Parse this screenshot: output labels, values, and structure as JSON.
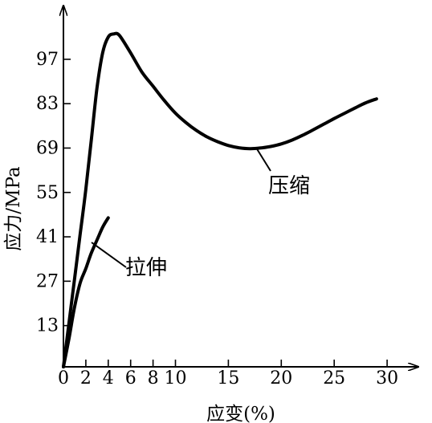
{
  "chart_data": {
    "type": "line",
    "title": "",
    "xlabel": "应变(%)",
    "ylabel": "应力/MPa",
    "x_ticks": [
      0,
      2,
      4,
      6,
      8,
      10,
      15,
      20,
      25,
      30
    ],
    "y_ticks": [
      13,
      27,
      41,
      55,
      69,
      83,
      97
    ],
    "xlim": [
      0,
      33
    ],
    "ylim": [
      0,
      112
    ],
    "grid": false,
    "legend": "none",
    "series": [
      {
        "name": "压缩",
        "x": [
          0,
          0.5,
          1,
          1.5,
          2,
          2.5,
          3,
          3.5,
          4,
          4.5,
          5,
          6,
          7,
          8,
          9,
          10,
          11,
          12,
          13,
          14,
          15,
          16,
          17,
          18,
          19,
          20,
          21,
          22,
          23,
          24,
          25,
          26,
          27,
          28,
          29
        ],
        "y": [
          0,
          14,
          28,
          42,
          56,
          72,
          88,
          99,
          104,
          105,
          104.5,
          99,
          93,
          88.5,
          84,
          80,
          77,
          74.5,
          72.5,
          71,
          69.8,
          69.1,
          68.8,
          69,
          69.5,
          70.3,
          71.5,
          73,
          74.7,
          76.5,
          78.3,
          80,
          81.7,
          83.3,
          84.5
        ]
      },
      {
        "name": "拉伸",
        "x": [
          0,
          0.5,
          1,
          1.5,
          2,
          2.5,
          3,
          3.5,
          4
        ],
        "y": [
          0,
          9,
          19,
          26.5,
          31,
          36,
          40,
          44,
          47
        ]
      }
    ],
    "annotations": [
      {
        "text": "压缩",
        "series": "压缩"
      },
      {
        "text": "拉伸",
        "series": "拉伸"
      }
    ]
  }
}
